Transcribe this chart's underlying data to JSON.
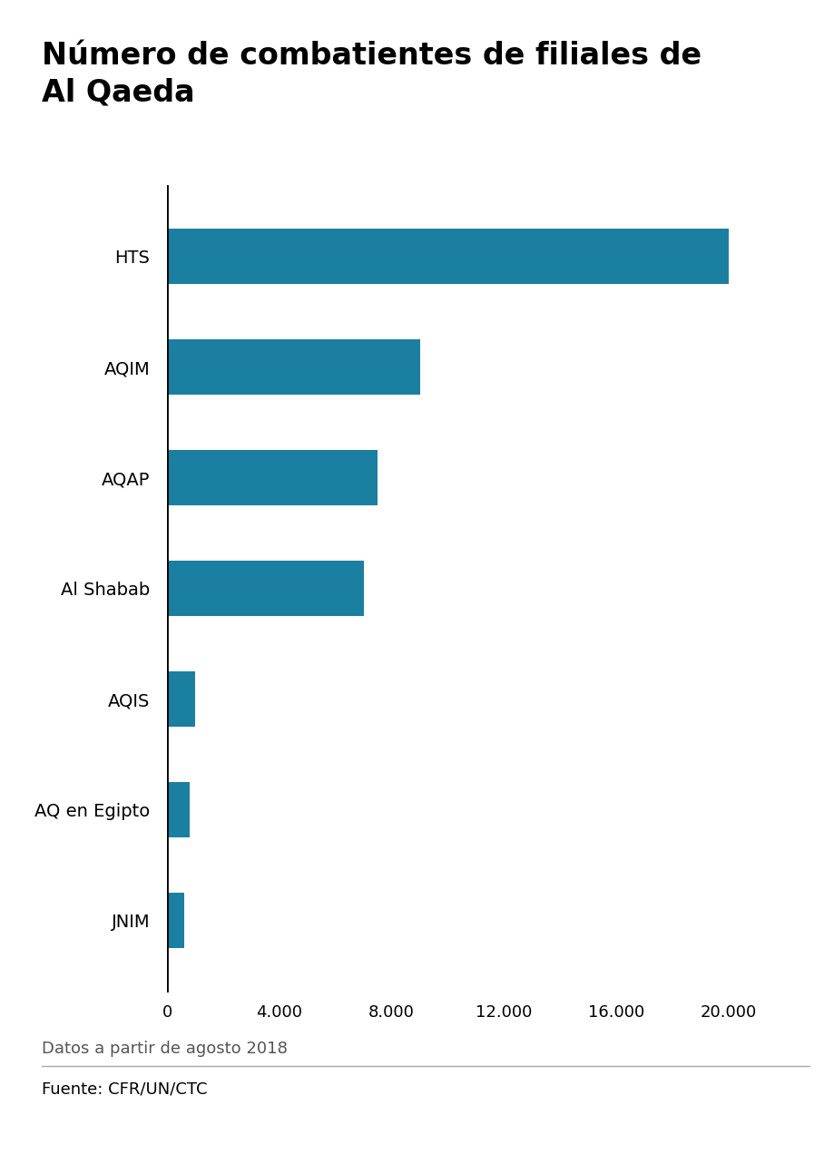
{
  "title": "Número de combatientes de filiales de\nAl Qaeda",
  "categories": [
    "HTS",
    "AQIM",
    "AQAP",
    "Al Shabab",
    "AQIS",
    "AQ en Egipto",
    "JNIM"
  ],
  "values": [
    20000,
    9000,
    7500,
    7000,
    1000,
    800,
    600
  ],
  "bar_color": "#1a7fa0",
  "background_color": "#ffffff",
  "xlim": [
    0,
    22000
  ],
  "xticks": [
    0,
    4000,
    8000,
    12000,
    16000,
    20000
  ],
  "xtick_labels": [
    "0",
    "4.000",
    "8.000",
    "12.000",
    "16.000",
    "20.000"
  ],
  "footnote": "Datos a partir de agosto 2018",
  "source": "Fuente: CFR/UN/CTC",
  "title_fontsize": 24,
  "label_fontsize": 14,
  "tick_fontsize": 13,
  "footnote_fontsize": 13,
  "source_fontsize": 13,
  "bar_height": 0.5,
  "source_color": "#000000",
  "footnote_color": "#555555",
  "bbc_bg_color": "#888888"
}
